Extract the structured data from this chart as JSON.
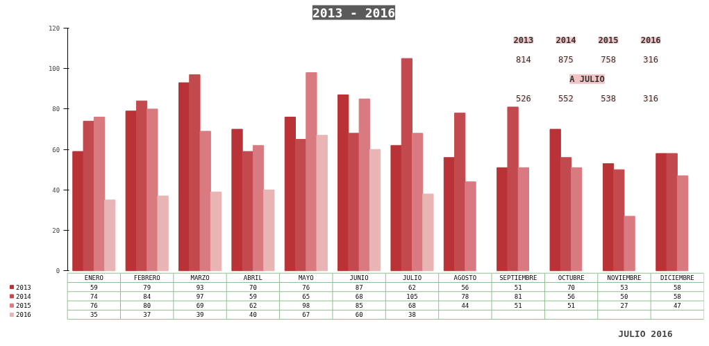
{
  "chart_data": {
    "type": "bar",
    "title": "2013 - 2016",
    "categories": [
      "ENERO",
      "FEBRERO",
      "MARZO",
      "ABRIL",
      "MAYO",
      "JUNIO",
      "JULIO",
      "AGOSTO",
      "SEPTIEMBRE",
      "OCTUBRE",
      "NOVIEMBRE",
      "DICIEMBRE"
    ],
    "series": [
      {
        "name": "2013",
        "color": "#b83236",
        "values": [
          59,
          79,
          93,
          70,
          76,
          87,
          62,
          56,
          51,
          70,
          53,
          58
        ]
      },
      {
        "name": "2014",
        "color": "#c24a4f",
        "values": [
          74,
          84,
          97,
          59,
          65,
          68,
          105,
          78,
          81,
          56,
          50,
          58
        ]
      },
      {
        "name": "2015",
        "color": "#d97a80",
        "values": [
          76,
          80,
          69,
          62,
          98,
          85,
          68,
          44,
          51,
          51,
          27,
          47
        ]
      },
      {
        "name": "2016",
        "color": "#e8b4b4",
        "values": [
          35,
          37,
          39,
          40,
          67,
          60,
          38,
          null,
          null,
          null,
          null,
          null
        ]
      }
    ],
    "ylim": [
      0,
      120
    ],
    "yticks": [
      0,
      20,
      40,
      60,
      80,
      100,
      120
    ],
    "grid": false,
    "data_labels": true,
    "legend": "bottom",
    "annotations": [
      "2013",
      "2014",
      "2015",
      "2016",
      "814",
      "875",
      "758",
      "316",
      "A JULIO",
      "526",
      "552",
      "538",
      "316",
      "JULIO 2016"
    ]
  }
}
